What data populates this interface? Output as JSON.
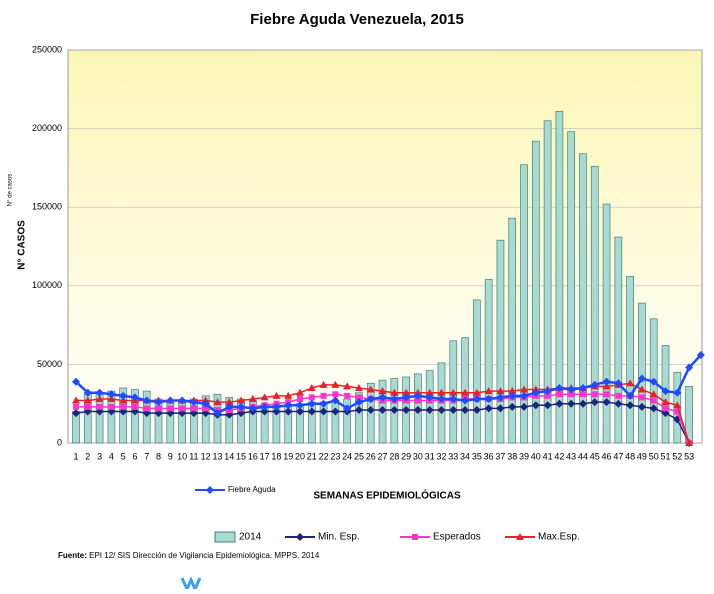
{
  "chart_data": {
    "type": "bar_line",
    "title": "Fiebre Aguda Venezuela, 2015",
    "y_label": "N° CASOS",
    "y_label_small": "N° de casos",
    "x_label": "SEMANAS EPIDEMIOLÓGICAS",
    "source_label": "Fuente:",
    "source": "EPI 12/ SIS Dirección de Vigilancia Epidemiológica. MPPS. 2014",
    "ylim": [
      0,
      250000
    ],
    "yticks": [
      0,
      50000,
      100000,
      150000,
      200000,
      250000
    ],
    "grid": true,
    "categories": [
      "1",
      "2",
      "3",
      "4",
      "5",
      "6",
      "7",
      "8",
      "9",
      "10",
      "11",
      "12",
      "13",
      "14",
      "15",
      "16",
      "17",
      "18",
      "19",
      "20",
      "21",
      "22",
      "23",
      "24",
      "25",
      "26",
      "27",
      "28",
      "29",
      "30",
      "31",
      "32",
      "33",
      "34",
      "35",
      "36",
      "37",
      "38",
      "39",
      "40",
      "41",
      "42",
      "43",
      "44",
      "45",
      "46",
      "47",
      "48",
      "49",
      "50",
      "51",
      "52",
      "53",
      null
    ],
    "series": [
      {
        "name": "2014",
        "kind": "bar",
        "color": "#a9d9d1",
        "values": [
          20000,
          31000,
          32000,
          33000,
          35000,
          34000,
          33000,
          28000,
          27000,
          27000,
          28000,
          30000,
          31000,
          29000,
          28000,
          27000,
          25000,
          25000,
          24000,
          25000,
          26000,
          26000,
          27000,
          28000,
          32000,
          38000,
          40000,
          41000,
          42000,
          44000,
          46000,
          51000,
          65000,
          67000,
          91000,
          104000,
          129000,
          143000,
          177000,
          192000,
          205000,
          211000,
          198000,
          184000,
          176000,
          152000,
          131000,
          106000,
          89000,
          79000,
          62000,
          45000,
          36000,
          null
        ]
      },
      {
        "name": "Min. Esp.",
        "kind": "line",
        "marker": "diamond",
        "color": "#1a237e",
        "values": [
          19000,
          20000,
          20000,
          20000,
          20000,
          20000,
          19000,
          19000,
          19000,
          19000,
          19000,
          19000,
          18000,
          18000,
          19000,
          20000,
          20000,
          20000,
          20000,
          20000,
          20000,
          20000,
          20000,
          20000,
          21000,
          21000,
          21000,
          21000,
          21000,
          21000,
          21000,
          21000,
          21000,
          21000,
          21000,
          22000,
          22000,
          23000,
          23000,
          24000,
          24000,
          25000,
          25000,
          25000,
          26000,
          26000,
          25000,
          24000,
          23000,
          22000,
          19000,
          15000,
          0,
          null
        ]
      },
      {
        "name": "Esperados",
        "kind": "line",
        "marker": "square",
        "color": "#ff33cc",
        "values": [
          23000,
          23000,
          23000,
          23000,
          23000,
          23000,
          22000,
          22000,
          22000,
          22000,
          22000,
          22000,
          21000,
          21000,
          22000,
          23000,
          24000,
          25000,
          26000,
          28000,
          29000,
          30000,
          31000,
          30000,
          29000,
          28000,
          27000,
          27000,
          27000,
          27000,
          27000,
          27000,
          27000,
          28000,
          28000,
          28000,
          28000,
          29000,
          29000,
          30000,
          30000,
          31000,
          31000,
          31000,
          31000,
          31000,
          30000,
          30000,
          29000,
          27000,
          22000,
          20000,
          0,
          null
        ]
      },
      {
        "name": "Max.Esp.",
        "kind": "line",
        "marker": "triangle",
        "color": "#e8202a",
        "values": [
          27000,
          27000,
          28000,
          28000,
          27000,
          27000,
          27000,
          27000,
          27000,
          27000,
          27000,
          27000,
          26000,
          26000,
          27000,
          28000,
          29000,
          30000,
          30000,
          32000,
          35000,
          37000,
          37000,
          36000,
          35000,
          34000,
          33000,
          32000,
          32000,
          32000,
          32000,
          32000,
          32000,
          32000,
          32000,
          33000,
          33000,
          33000,
          34000,
          34000,
          34000,
          35000,
          35000,
          35000,
          36000,
          36000,
          37000,
          38000,
          34000,
          31000,
          26000,
          24000,
          0,
          null
        ]
      },
      {
        "name": "Fiebre Aguda",
        "kind": "line",
        "marker": "diamond",
        "color": "#1e4bff",
        "values": [
          39000,
          32000,
          32000,
          31000,
          30000,
          29000,
          27000,
          26000,
          27000,
          27000,
          26000,
          25000,
          19000,
          23000,
          23000,
          22000,
          23000,
          23000,
          24000,
          24000,
          25000,
          25000,
          27000,
          22000,
          26000,
          28000,
          29000,
          28000,
          29000,
          30000,
          29000,
          28000,
          28000,
          27000,
          28000,
          28000,
          29000,
          30000,
          30000,
          32000,
          33000,
          35000,
          34000,
          35000,
          37000,
          39000,
          38000,
          30000,
          41000,
          39000,
          33000,
          32000,
          48000,
          56000
        ]
      }
    ]
  }
}
